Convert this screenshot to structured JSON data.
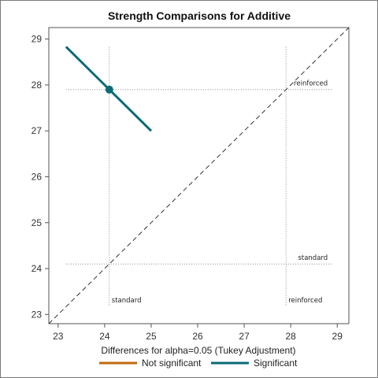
{
  "chart_data": {
    "type": "line",
    "title": "Strength Comparisons for Additive",
    "xlabel": "Differences for alpha=0.05 (Tukey Adjustment)",
    "ylabel": "",
    "xlim": [
      22.8,
      29.25
    ],
    "ylim": [
      22.8,
      29.25
    ],
    "xticks": [
      23,
      24,
      25,
      26,
      27,
      28,
      29
    ],
    "yticks": [
      23,
      24,
      25,
      26,
      27,
      28,
      29
    ],
    "levels": [
      {
        "name": "standard",
        "mean": 24.1
      },
      {
        "name": "reinforced",
        "mean": 27.9
      }
    ],
    "comparisons": [
      {
        "x": 24.1,
        "y": 27.9,
        "x1": 23.17,
        "y1": 28.83,
        "x2": 25.0,
        "y2": 27.0,
        "significant": true
      }
    ],
    "diagonal": true,
    "legend": {
      "position": "bottom",
      "items": [
        {
          "label": "Not significant",
          "color": "#c06a0f"
        },
        {
          "label": "Significant",
          "color": "#0a6b75"
        }
      ]
    },
    "colors": {
      "significant": "#0a6b75",
      "not_significant": "#c06a0f",
      "reference": "#888888"
    }
  }
}
